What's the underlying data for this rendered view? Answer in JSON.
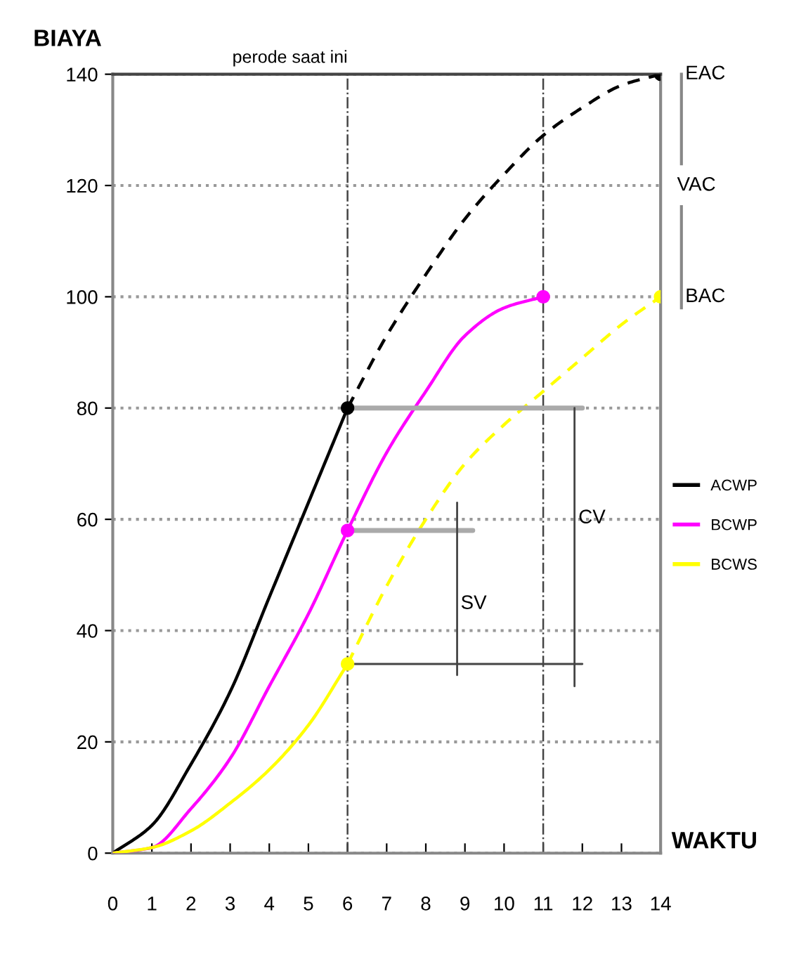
{
  "chart_data": {
    "type": "line",
    "xlabel": "WAKTU",
    "ylabel": "BIAYA",
    "xlim": [
      0,
      14
    ],
    "ylim": [
      0,
      140
    ],
    "xticks": [
      0,
      1,
      2,
      3,
      4,
      5,
      6,
      7,
      8,
      9,
      10,
      11,
      12,
      13,
      14
    ],
    "yticks": [
      0,
      20,
      40,
      60,
      80,
      100,
      120,
      140
    ],
    "grid": "y",
    "legend": "right",
    "series": [
      {
        "name": "ACWP",
        "color": "#000000",
        "x": [
          0,
          1,
          2,
          3,
          4,
          5,
          6
        ],
        "values": [
          0,
          5,
          16,
          29,
          46,
          63,
          80
        ]
      },
      {
        "name": "BCWP",
        "color": "#ff00ff",
        "x": [
          0,
          1,
          2,
          3,
          4,
          5,
          6,
          7,
          8,
          9,
          10,
          11
        ],
        "values": [
          0,
          1,
          8,
          17,
          30,
          43,
          58,
          72,
          83,
          93,
          98,
          100
        ]
      },
      {
        "name": "BCWS",
        "color": "#ffff00",
        "x": [
          0,
          1,
          2,
          3,
          4,
          5,
          6
        ],
        "values": [
          0,
          1,
          4,
          9,
          15,
          23,
          34
        ]
      },
      {
        "color": "#000000",
        "line_style": "dashed",
        "x": [
          6,
          7,
          8,
          9,
          10,
          11,
          12,
          13,
          14
        ],
        "values": [
          80,
          93,
          104,
          114,
          122,
          129,
          134,
          138,
          140
        ]
      },
      {
        "color": "#ffff00",
        "line_style": "dashed",
        "x": [
          6,
          7,
          8,
          9,
          10,
          11,
          12,
          13,
          14
        ],
        "values": [
          34,
          48,
          60,
          70,
          77,
          83,
          89,
          95,
          100
        ]
      },
      {
        "color": "#aaaaaa",
        "x": [
          6,
          12
        ],
        "values": [
          80,
          80
        ]
      },
      {
        "color": "#aaaaaa",
        "x": [
          6,
          9.2
        ],
        "values": [
          58,
          58
        ]
      },
      {
        "color": "#444444",
        "x": [
          6,
          12
        ],
        "values": [
          34,
          34
        ]
      },
      {
        "color": "#444444",
        "x": [
          8.8,
          8.8
        ],
        "values": [
          32,
          63
        ]
      },
      {
        "color": "#444444",
        "x": [
          11.8,
          11.8
        ],
        "values": [
          30,
          80
        ]
      },
      {
        "type": "scatter",
        "x": [
          6,
          6,
          6,
          11,
          14,
          14
        ],
        "values": [
          80,
          58,
          34,
          100,
          140,
          100
        ],
        "colors": [
          "#000000",
          "#ff00ff",
          "#ffff00",
          "#ff00ff",
          "#000000",
          "#ffff00"
        ]
      }
    ],
    "ref_lines": [
      {
        "axis": "x",
        "value": 6,
        "label": "perode saat ini",
        "line_style": "dashdot"
      },
      {
        "axis": "x",
        "value": 11,
        "line_style": "dashdot"
      }
    ],
    "annotations": [
      "EAC",
      "VAC",
      "BAC",
      "SV",
      "CV"
    ]
  }
}
